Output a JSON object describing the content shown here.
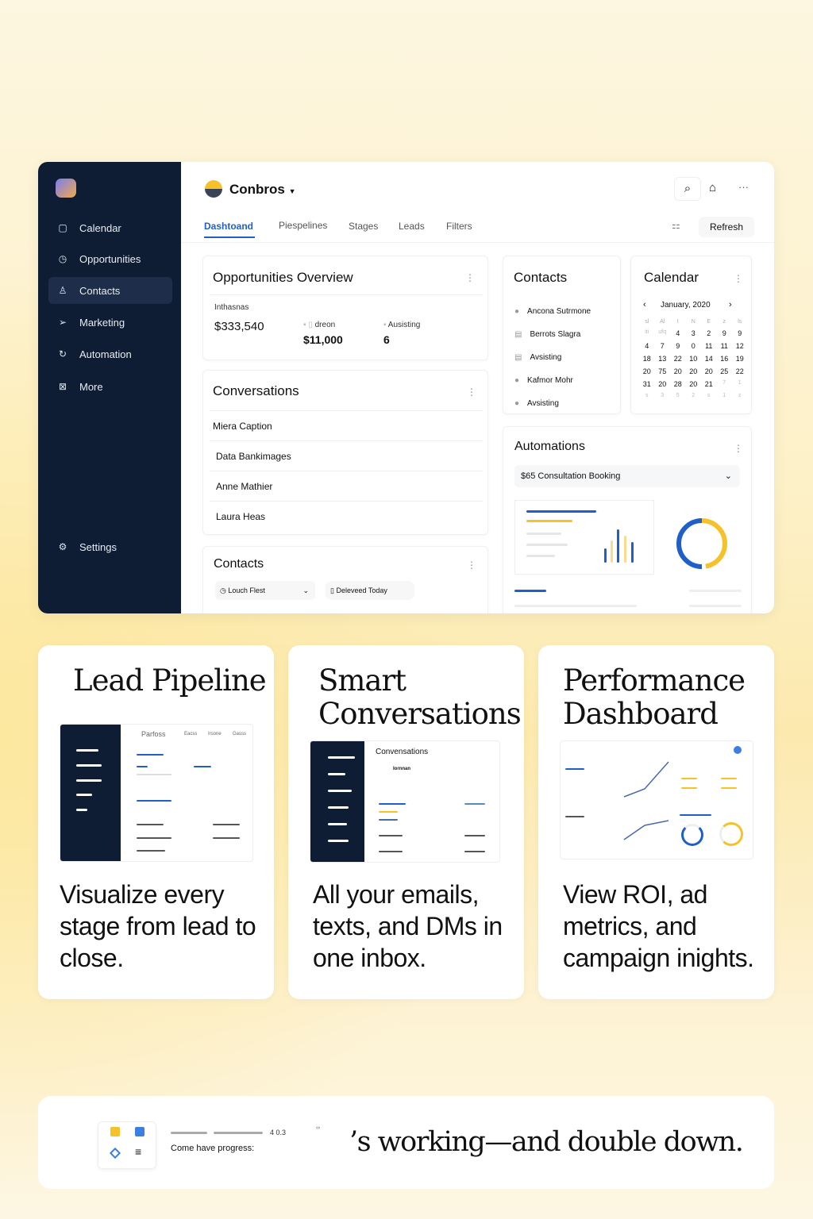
{
  "app": {
    "sidebar": {
      "items": [
        {
          "label": "Calendar",
          "icon": "calendar-icon",
          "active": false
        },
        {
          "label": "Opportunities",
          "icon": "clock-icon",
          "active": false
        },
        {
          "label": "Contacts",
          "icon": "user-icon",
          "active": true
        },
        {
          "label": "Marketing",
          "icon": "send-icon",
          "active": false
        },
        {
          "label": "Automation",
          "icon": "refresh-icon",
          "active": false
        },
        {
          "label": "More",
          "icon": "box-icon",
          "active": false
        }
      ],
      "settings": "Settings"
    },
    "header": {
      "workspace": "Conbros",
      "refresh": "Refresh"
    },
    "tabs": [
      "Dashtoand",
      "Piespelines",
      "Stages",
      "Leads",
      "Filters"
    ],
    "active_tab": "Dashtoand",
    "overview": {
      "title": "Opportunities Overview",
      "label": "Inthasnas",
      "total": "$333,540",
      "stat1_label": "dreon",
      "stat1_value": "$11,000",
      "stat2_label": "Ausisting",
      "stat2_value": "6"
    },
    "conversations": {
      "title": "Conversations",
      "items": [
        "Miera Caption",
        "Data Bankimages",
        "Anne Mathier",
        "Laura Heas"
      ]
    },
    "contacts_bottom": {
      "title": "Contacts",
      "select": "Louch Flest",
      "chip": "Deleveed Today"
    },
    "contacts": {
      "title": "Contacts",
      "items": [
        "Ancona Sutrmone",
        "Berrots Slagra",
        "Avsisting",
        "Kafmor Mohr",
        "Avsisting"
      ]
    },
    "calendar": {
      "title": "Calendar",
      "month": "January, 2020",
      "weekdays": [
        "sl",
        "Al",
        "I",
        "N",
        "E",
        "z",
        "ls"
      ],
      "days": [
        "iti",
        "ufq",
        "4",
        "3",
        "2",
        "9",
        "9",
        "4",
        "7",
        "9",
        "0",
        "11",
        "11",
        "12",
        "18",
        "13",
        "22",
        "10",
        "14",
        "16",
        "19",
        "20",
        "75",
        "20",
        "20",
        "20",
        "25",
        "22",
        "31",
        "20",
        "28",
        "20",
        "21",
        "7",
        "1",
        "s",
        "3",
        "5",
        "2",
        "s",
        "1",
        "z"
      ]
    },
    "automations": {
      "title": "Automations",
      "select": "$65 Consultation Booking",
      "donut_fraction": 0.5
    }
  },
  "features": [
    {
      "title": "Lead Pipeline",
      "desc": "Visualize every stage from lead to close.",
      "thumb_tabs": [
        "Parfoss",
        "Eacss",
        "Irsone",
        "Gasss"
      ]
    },
    {
      "title": "Smart Conversations",
      "desc": "All your emails, texts, and DMs in one inbox.",
      "thumb_title": "Convensations",
      "thumb_contact": "Iornnan"
    },
    {
      "title": "Performance Dashboard",
      "desc": "View ROI, ad metrics, and campaign inights."
    }
  ],
  "banner": {
    "progress_label": "Come have progress:",
    "progress_value": "4 0.3",
    "tagline": "’s working—and double down."
  },
  "colors": {
    "accent": "#1f5fc8",
    "yellow": "#f5c22b",
    "sidebar": "#0f1d34"
  }
}
